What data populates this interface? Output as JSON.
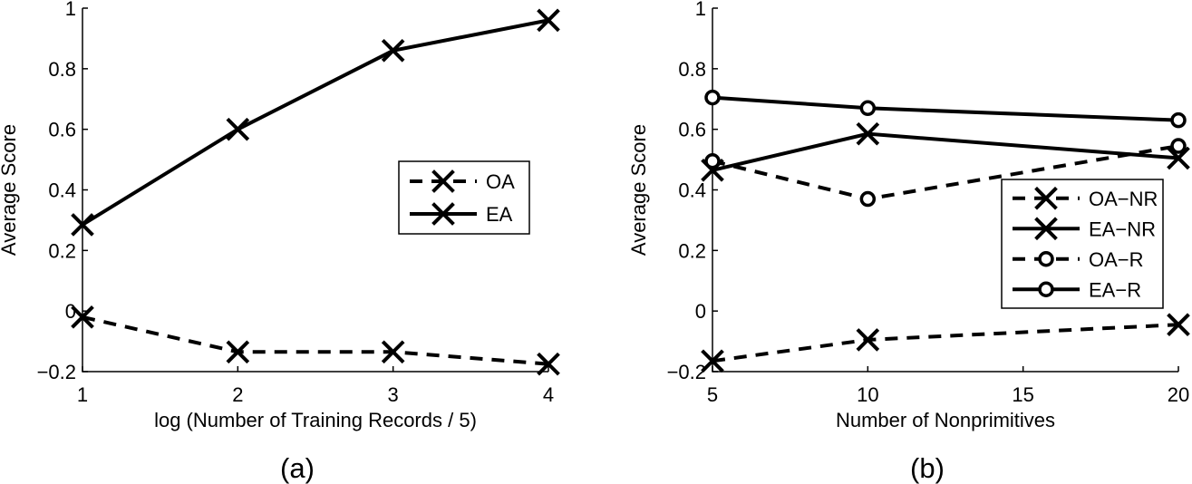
{
  "chart_data": [
    {
      "type": "line",
      "caption": "(a)",
      "xlabel": "log (Number of Training Records / 5)",
      "ylabel": "Average Score",
      "xlim": [
        1,
        4
      ],
      "ylim": [
        -0.2,
        1
      ],
      "xticks": [
        1,
        2,
        3,
        4
      ],
      "xtick_labels": [
        "1",
        "2",
        "3",
        "4"
      ],
      "yticks": [
        -0.2,
        0,
        0.2,
        0.4,
        0.6,
        0.8,
        1
      ],
      "ytick_labels": [
        "−0.2",
        "0",
        "0.2",
        "0.4",
        "0.6",
        "0.8",
        "1"
      ],
      "legend_position": "center-right",
      "series": [
        {
          "name": "OA",
          "line_style": "dashed",
          "marker": "x",
          "x": [
            1,
            2,
            3,
            4
          ],
          "y": [
            -0.02,
            -0.135,
            -0.135,
            -0.175
          ]
        },
        {
          "name": "EA",
          "line_style": "solid",
          "marker": "x",
          "x": [
            1,
            2,
            3,
            4
          ],
          "y": [
            0.285,
            0.6,
            0.86,
            0.96
          ]
        }
      ]
    },
    {
      "type": "line",
      "caption": "(b)",
      "xlabel": "Number of Nonprimitives",
      "ylabel": "Average Score",
      "xlim": [
        5,
        20
      ],
      "ylim": [
        -0.2,
        1
      ],
      "xticks": [
        5,
        10,
        15,
        20
      ],
      "xtick_labels": [
        "5",
        "10",
        "15",
        "20"
      ],
      "yticks": [
        -0.2,
        0,
        0.2,
        0.4,
        0.6,
        0.8,
        1
      ],
      "ytick_labels": [
        "−0.2",
        "0",
        "0.2",
        "0.4",
        "0.6",
        "0.8",
        "1"
      ],
      "legend_position": "right",
      "series": [
        {
          "name": "OA−NR",
          "line_style": "dashed",
          "marker": "x",
          "x": [
            5,
            10,
            20
          ],
          "y": [
            -0.165,
            -0.095,
            -0.045
          ]
        },
        {
          "name": "EA−NR",
          "line_style": "solid",
          "marker": "x",
          "x": [
            5,
            10,
            20
          ],
          "y": [
            0.465,
            0.585,
            0.505
          ]
        },
        {
          "name": "OA−R",
          "line_style": "dashed",
          "marker": "o",
          "x": [
            5,
            10,
            20
          ],
          "y": [
            0.495,
            0.37,
            0.545
          ]
        },
        {
          "name": "EA−R",
          "line_style": "solid",
          "marker": "o",
          "x": [
            5,
            10,
            20
          ],
          "y": [
            0.705,
            0.67,
            0.63
          ]
        }
      ]
    }
  ]
}
